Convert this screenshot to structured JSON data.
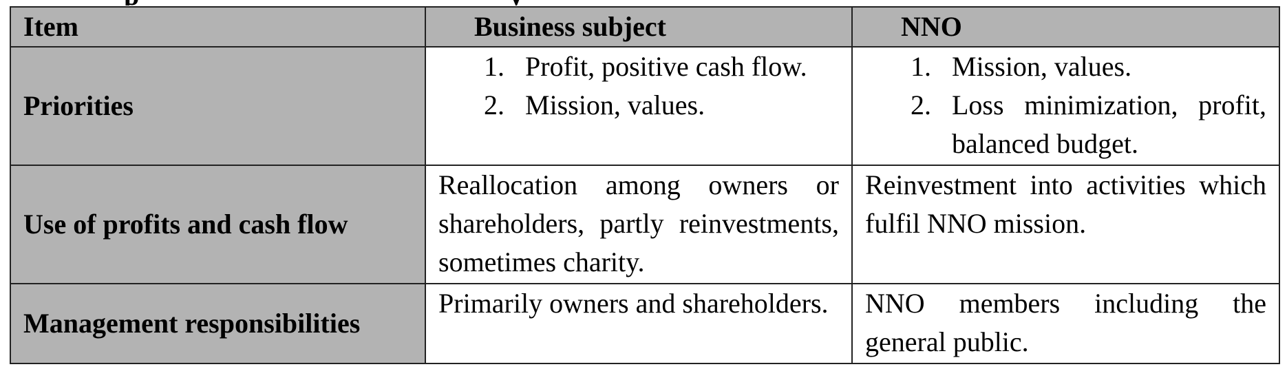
{
  "table": {
    "headers": {
      "item": "Item",
      "business": "Business subject",
      "nno": "NNO"
    },
    "rows": [
      {
        "label": "Priorities",
        "business": [
          {
            "num": "1.",
            "text": "Profit, positive cash flow."
          },
          {
            "num": "2.",
            "text": "Mission, values."
          }
        ],
        "nno": [
          {
            "num": "1.",
            "text": "Mission, values."
          },
          {
            "num": "2.",
            "text": "Loss minimization, profit, balanced budget."
          }
        ]
      },
      {
        "label": "Use of profits and cash flow",
        "business": "Reallocation among owners or shareholders, partly reinvestments, sometimes charity.",
        "nno": "Reinvestment into activities which fulfil NNO mission."
      },
      {
        "label": "Management responsibilities",
        "business": "Primarily owners and shareholders.",
        "nno": "NNO members including the general public."
      }
    ]
  }
}
